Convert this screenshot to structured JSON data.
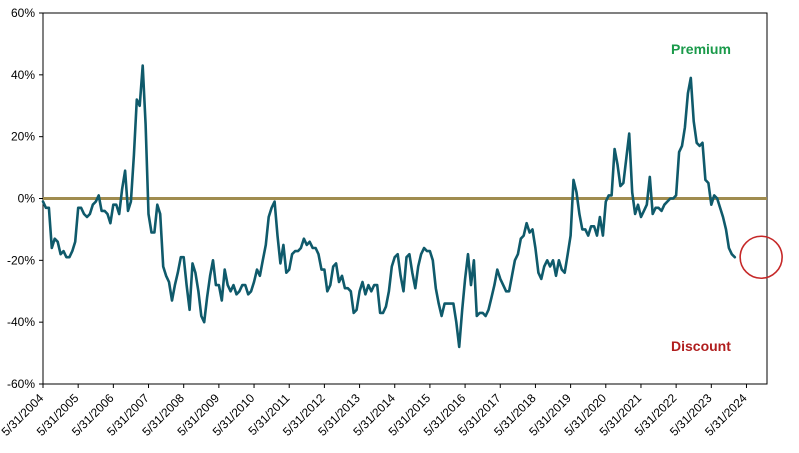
{
  "chart_data": {
    "type": "line",
    "title": "",
    "xlabel": "",
    "ylabel": "",
    "x_start": "2004-05",
    "ylim": [
      -60,
      60
    ],
    "yticks": [
      60,
      40,
      20,
      0,
      -20,
      -40,
      -60
    ],
    "ytick_labels": [
      "60%",
      "40%",
      "20%",
      "0%",
      "-20%",
      "-40%",
      "-60%"
    ],
    "xtick_labels": [
      "5/31/2004",
      "5/31/2005",
      "5/31/2006",
      "5/31/2007",
      "5/31/2008",
      "5/31/2009",
      "5/31/2010",
      "5/31/2011",
      "5/31/2012",
      "5/31/2013",
      "5/31/2014",
      "5/31/2015",
      "5/31/2016",
      "5/31/2017",
      "5/31/2018",
      "5/31/2019",
      "5/31/2020",
      "5/31/2021",
      "5/31/2022",
      "5/31/2023",
      "5/31/2024"
    ],
    "grid": false,
    "reference_line": {
      "y": 0,
      "color": "#a08c4f"
    },
    "annotations": {
      "premium": "Premium",
      "discount": "Discount"
    },
    "colors": {
      "series": "#0f5a6b",
      "premium": "#1a9a4a",
      "discount": "#b01e1e",
      "highlight": "#c62828",
      "axis": "#000000"
    },
    "highlight": {
      "description": "circle around latest values",
      "x_month": 245,
      "y": -19
    },
    "series": [
      {
        "points": [
          [
            0,
            -1
          ],
          [
            1,
            -3
          ],
          [
            2,
            -3
          ],
          [
            3,
            -16
          ],
          [
            4,
            -13
          ],
          [
            5,
            -14
          ],
          [
            6,
            -18
          ],
          [
            7,
            -17
          ],
          [
            8,
            -19
          ],
          [
            9,
            -19
          ],
          [
            10,
            -17
          ],
          [
            11,
            -14
          ],
          [
            12,
            -3
          ],
          [
            13,
            -3
          ],
          [
            14,
            -5
          ],
          [
            15,
            -6
          ],
          [
            16,
            -5
          ],
          [
            17,
            -2
          ],
          [
            18,
            -1
          ],
          [
            19,
            1
          ],
          [
            20,
            -4
          ],
          [
            21,
            -4
          ],
          [
            22,
            -5
          ],
          [
            23,
            -8
          ],
          [
            24,
            -2
          ],
          [
            25,
            -2
          ],
          [
            26,
            -5
          ],
          [
            27,
            3
          ],
          [
            28,
            9
          ],
          [
            29,
            -4
          ],
          [
            30,
            -1
          ],
          [
            31,
            14
          ],
          [
            32,
            32
          ],
          [
            33,
            30
          ],
          [
            34,
            43
          ],
          [
            35,
            24
          ],
          [
            36,
            -5
          ],
          [
            37,
            -11
          ],
          [
            38,
            -11
          ],
          [
            39,
            -2
          ],
          [
            40,
            -5
          ],
          [
            41,
            -22
          ],
          [
            42,
            -25
          ],
          [
            43,
            -27
          ],
          [
            44,
            -33
          ],
          [
            45,
            -28
          ],
          [
            46,
            -24
          ],
          [
            47,
            -19
          ],
          [
            48,
            -19
          ],
          [
            49,
            -28
          ],
          [
            50,
            -36
          ],
          [
            51,
            -21
          ],
          [
            52,
            -24
          ],
          [
            53,
            -30
          ],
          [
            54,
            -38
          ],
          [
            55,
            -40
          ],
          [
            56,
            -32
          ],
          [
            57,
            -25
          ],
          [
            58,
            -20
          ],
          [
            59,
            -28
          ],
          [
            60,
            -28
          ],
          [
            61,
            -33
          ],
          [
            62,
            -23
          ],
          [
            63,
            -28
          ],
          [
            64,
            -30
          ],
          [
            65,
            -28
          ],
          [
            66,
            -31
          ],
          [
            67,
            -30
          ],
          [
            68,
            -28
          ],
          [
            69,
            -28
          ],
          [
            70,
            -31
          ],
          [
            71,
            -30
          ],
          [
            72,
            -27
          ],
          [
            73,
            -23
          ],
          [
            74,
            -25
          ],
          [
            75,
            -20
          ],
          [
            76,
            -15
          ],
          [
            77,
            -6
          ],
          [
            78,
            -3
          ],
          [
            79,
            -1
          ],
          [
            80,
            -12
          ],
          [
            81,
            -21
          ],
          [
            82,
            -15
          ],
          [
            83,
            -24
          ],
          [
            84,
            -23
          ],
          [
            85,
            -18
          ],
          [
            86,
            -17
          ],
          [
            87,
            -17
          ],
          [
            88,
            -16
          ],
          [
            89,
            -13
          ],
          [
            90,
            -15
          ],
          [
            91,
            -14
          ],
          [
            92,
            -16
          ],
          [
            93,
            -16
          ],
          [
            94,
            -18
          ],
          [
            95,
            -23
          ],
          [
            96,
            -23
          ],
          [
            97,
            -30
          ],
          [
            98,
            -28
          ],
          [
            99,
            -22
          ],
          [
            100,
            -21
          ],
          [
            101,
            -27
          ],
          [
            102,
            -25
          ],
          [
            103,
            -29
          ],
          [
            104,
            -29
          ],
          [
            105,
            -30
          ],
          [
            106,
            -37
          ],
          [
            107,
            -36
          ],
          [
            108,
            -30
          ],
          [
            109,
            -27
          ],
          [
            110,
            -31
          ],
          [
            111,
            -28
          ],
          [
            112,
            -30
          ],
          [
            113,
            -28
          ],
          [
            114,
            -28
          ],
          [
            115,
            -37
          ],
          [
            116,
            -37
          ],
          [
            117,
            -35
          ],
          [
            118,
            -30
          ],
          [
            119,
            -22
          ],
          [
            120,
            -19
          ],
          [
            121,
            -18
          ],
          [
            122,
            -25
          ],
          [
            123,
            -30
          ],
          [
            124,
            -19
          ],
          [
            125,
            -18
          ],
          [
            126,
            -24
          ],
          [
            127,
            -29
          ],
          [
            128,
            -22
          ],
          [
            129,
            -18
          ],
          [
            130,
            -16
          ],
          [
            131,
            -17
          ],
          [
            132,
            -17
          ],
          [
            133,
            -20
          ],
          [
            134,
            -29
          ],
          [
            135,
            -34
          ],
          [
            136,
            -38
          ],
          [
            137,
            -34
          ],
          [
            138,
            -34
          ],
          [
            139,
            -34
          ],
          [
            140,
            -34
          ],
          [
            141,
            -40
          ],
          [
            142,
            -48
          ],
          [
            143,
            -36
          ],
          [
            144,
            -26
          ],
          [
            145,
            -18
          ],
          [
            146,
            -28
          ],
          [
            147,
            -20
          ],
          [
            148,
            -38
          ],
          [
            149,
            -37
          ],
          [
            150,
            -37
          ],
          [
            151,
            -38
          ],
          [
            152,
            -36
          ],
          [
            153,
            -32
          ],
          [
            154,
            -28
          ],
          [
            155,
            -23
          ],
          [
            156,
            -26
          ],
          [
            157,
            -28
          ],
          [
            158,
            -30
          ],
          [
            159,
            -30
          ],
          [
            160,
            -25
          ],
          [
            161,
            -20
          ],
          [
            162,
            -18
          ],
          [
            163,
            -13
          ],
          [
            164,
            -12
          ],
          [
            165,
            -8
          ],
          [
            166,
            -11
          ],
          [
            167,
            -10
          ],
          [
            168,
            -16
          ],
          [
            169,
            -24
          ],
          [
            170,
            -26
          ],
          [
            171,
            -22
          ],
          [
            172,
            -20
          ],
          [
            173,
            -22
          ],
          [
            174,
            -20
          ],
          [
            175,
            -25
          ],
          [
            176,
            -20
          ],
          [
            177,
            -23
          ],
          [
            178,
            -24
          ],
          [
            179,
            -18
          ],
          [
            180,
            -12
          ],
          [
            181,
            6
          ],
          [
            182,
            2
          ],
          [
            183,
            -5
          ],
          [
            184,
            -10
          ],
          [
            185,
            -10
          ],
          [
            186,
            -12
          ],
          [
            187,
            -9
          ],
          [
            188,
            -9
          ],
          [
            189,
            -12
          ],
          [
            190,
            -6
          ],
          [
            191,
            -12
          ],
          [
            192,
            -1
          ],
          [
            193,
            1
          ],
          [
            194,
            1
          ],
          [
            195,
            16
          ],
          [
            196,
            11
          ],
          [
            197,
            4
          ],
          [
            198,
            5
          ],
          [
            199,
            13
          ],
          [
            200,
            21
          ],
          [
            201,
            2
          ],
          [
            202,
            -5
          ],
          [
            203,
            -2
          ],
          [
            204,
            -6
          ],
          [
            205,
            -4
          ],
          [
            206,
            -2
          ],
          [
            207,
            7
          ],
          [
            208,
            -5
          ],
          [
            209,
            -3
          ],
          [
            210,
            -3
          ],
          [
            211,
            -4
          ],
          [
            212,
            -2
          ],
          [
            213,
            -1
          ],
          [
            214,
            0
          ],
          [
            215,
            0
          ],
          [
            216,
            1
          ],
          [
            217,
            15
          ],
          [
            218,
            17
          ],
          [
            219,
            23
          ],
          [
            220,
            34
          ],
          [
            221,
            39
          ],
          [
            222,
            25
          ],
          [
            223,
            18
          ],
          [
            224,
            17
          ],
          [
            225,
            18
          ],
          [
            226,
            6
          ],
          [
            227,
            5
          ],
          [
            228,
            -2
          ],
          [
            229,
            1
          ],
          [
            230,
            0
          ],
          [
            231,
            -3
          ],
          [
            232,
            -6
          ],
          [
            233,
            -10
          ],
          [
            234,
            -16
          ],
          [
            235,
            -18
          ],
          [
            236,
            -19
          ]
        ]
      }
    ]
  }
}
